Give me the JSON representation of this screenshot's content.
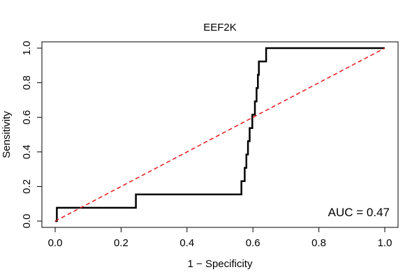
{
  "chart_data": {
    "type": "line",
    "title": "EEF2K",
    "xlabel": "1 − Specificity",
    "ylabel": "Sensitivity",
    "xlim": [
      0,
      1
    ],
    "ylim": [
      0,
      1
    ],
    "x_ticks": [
      "0.0",
      "0.2",
      "0.4",
      "0.6",
      "0.8",
      "1.0"
    ],
    "y_ticks": [
      "0.0",
      "0.2",
      "0.4",
      "0.6",
      "0.8",
      "1.0"
    ],
    "grid": false,
    "annotation": "AUC = 0.47",
    "series": [
      {
        "style": "solid",
        "color": "#000000",
        "x": [
          0,
          0.005,
          0.005,
          0.245,
          0.245,
          0.565,
          0.565,
          0.575,
          0.575,
          0.58,
          0.58,
          0.585,
          0.585,
          0.59,
          0.59,
          0.598,
          0.598,
          0.606,
          0.606,
          0.611,
          0.611,
          0.615,
          0.615,
          0.618,
          0.618,
          0.622,
          0.622,
          0.64,
          0.64,
          1.0
        ],
        "y": [
          0,
          0,
          0.077,
          0.077,
          0.154,
          0.154,
          0.231,
          0.231,
          0.308,
          0.308,
          0.385,
          0.385,
          0.462,
          0.462,
          0.538,
          0.538,
          0.615,
          0.615,
          0.692,
          0.692,
          0.769,
          0.769,
          0.846,
          0.846,
          0.923,
          0.923,
          0.923,
          0.923,
          1.0,
          1.0
        ]
      },
      {
        "style": "dashed",
        "color": "#e41a1c",
        "x": [
          0,
          1
        ],
        "y": [
          0,
          1
        ]
      }
    ]
  }
}
